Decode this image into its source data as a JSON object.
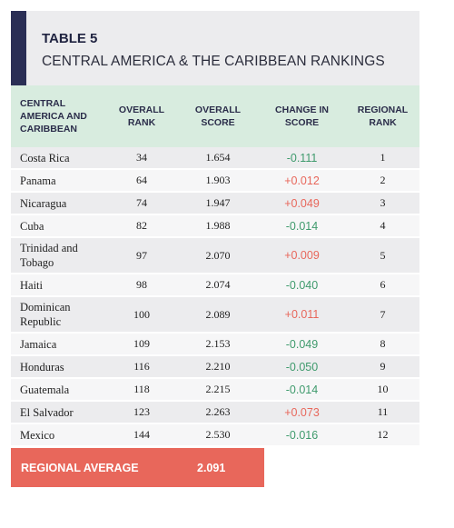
{
  "table_label": "TABLE 5",
  "table_title": "CENTRAL AMERICA & THE CARIBBEAN RANKINGS",
  "columns": {
    "region": "CENTRAL AMERICA AND CARIBBEAN",
    "overall_rank": "OVERALL RANK",
    "overall_score": "OVERALL SCORE",
    "change": "CHANGE IN SCORE",
    "regional_rank": "REGIONAL RANK"
  },
  "colors": {
    "positive_change": "#e8675b",
    "negative_change": "#3e9a6c",
    "accent": "#2a2e55",
    "header_bg": "#d8ecdf"
  },
  "rows": [
    {
      "country": "Costa Rica",
      "rank": "34",
      "score": "1.654",
      "change": "-0.111",
      "regional": "1"
    },
    {
      "country": "Panama",
      "rank": "64",
      "score": "1.903",
      "change": "+0.012",
      "regional": "2"
    },
    {
      "country": "Nicaragua",
      "rank": "74",
      "score": "1.947",
      "change": "+0.049",
      "regional": "3"
    },
    {
      "country": "Cuba",
      "rank": "82",
      "score": "1.988",
      "change": "-0.014",
      "regional": "4"
    },
    {
      "country": "Trinidad and Tobago",
      "rank": "97",
      "score": "2.070",
      "change": "+0.009",
      "regional": "5"
    },
    {
      "country": "Haiti",
      "rank": "98",
      "score": "2.074",
      "change": "-0.040",
      "regional": "6"
    },
    {
      "country": "Dominican Republic",
      "rank": "100",
      "score": "2.089",
      "change": "+0.011",
      "regional": "7"
    },
    {
      "country": "Jamaica",
      "rank": "109",
      "score": "2.153",
      "change": "-0.049",
      "regional": "8"
    },
    {
      "country": "Honduras",
      "rank": "116",
      "score": "2.210",
      "change": "-0.050",
      "regional": "9"
    },
    {
      "country": "Guatemala",
      "rank": "118",
      "score": "2.215",
      "change": "-0.014",
      "regional": "10"
    },
    {
      "country": "El Salvador",
      "rank": "123",
      "score": "2.263",
      "change": "+0.073",
      "regional": "11"
    },
    {
      "country": "Mexico",
      "rank": "144",
      "score": "2.530",
      "change": "-0.016",
      "regional": "12"
    }
  ],
  "average": {
    "label": "REGIONAL AVERAGE",
    "score": "2.091"
  }
}
